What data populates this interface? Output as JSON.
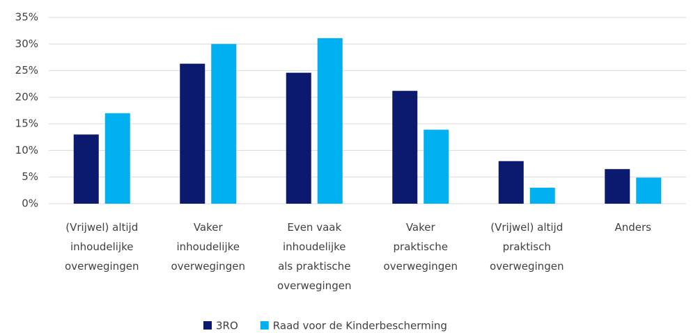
{
  "chart_data": {
    "type": "bar",
    "categories": [
      "(Vrijwel) altijd\ninhoudelijke\noverwegingen",
      "Vaker\ninhoudelijke\noverwegingen",
      "Even vaak\ninhoudelijke\nals praktische\noverwegingen",
      "Vaker\npraktische\noverwegingen",
      "(Vrijwel) altijd\npraktisch\noverwegingen",
      "Anders"
    ],
    "series": [
      {
        "name": "3RO",
        "color": "#0b1a6e",
        "values": [
          13,
          26.3,
          24.6,
          21.2,
          8,
          6.5
        ]
      },
      {
        "name": "Raad voor de Kinderbescherming",
        "color": "#00b0f0",
        "values": [
          17,
          30,
          31.1,
          13.9,
          3,
          4.9
        ]
      }
    ],
    "ylim": [
      0,
      35
    ],
    "yticks": [
      {
        "value": 0,
        "label": "0%"
      },
      {
        "value": 5,
        "label": "5%"
      },
      {
        "value": 10,
        "label": "10%"
      },
      {
        "value": 15,
        "label": "15%"
      },
      {
        "value": 20,
        "label": "20%"
      },
      {
        "value": 25,
        "label": "25%"
      },
      {
        "value": 30,
        "label": "30%"
      },
      {
        "value": 35,
        "label": "35%"
      }
    ],
    "grid": true,
    "legend": "bottom"
  }
}
